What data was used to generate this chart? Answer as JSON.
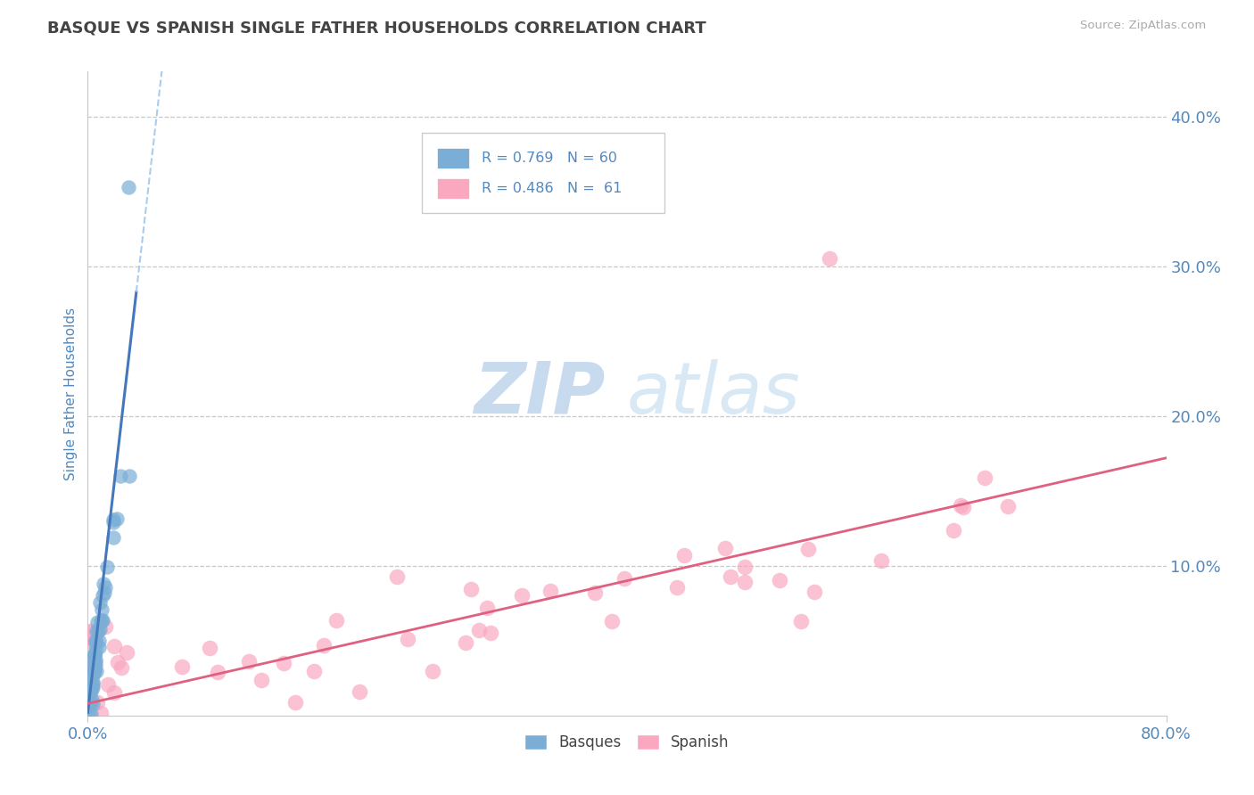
{
  "title": "BASQUE VS SPANISH SINGLE FATHER HOUSEHOLDS CORRELATION CHART",
  "source": "Source: ZipAtlas.com",
  "ylabel": "Single Father Households",
  "ytick_labels": [
    "40.0%",
    "30.0%",
    "20.0%",
    "10.0%"
  ],
  "ytick_values": [
    0.4,
    0.3,
    0.2,
    0.1
  ],
  "xlim": [
    0.0,
    0.8
  ],
  "ylim": [
    0.0,
    0.43
  ],
  "basque_R": 0.769,
  "basque_N": 60,
  "spanish_R": 0.486,
  "spanish_N": 61,
  "basque_color": "#7aaed6",
  "basque_line_color": "#4477bb",
  "basque_dash_color": "#aaccee",
  "spanish_color": "#f9a8c0",
  "spanish_line_color": "#e06080",
  "background_color": "#ffffff",
  "grid_color": "#c8c8c8",
  "title_color": "#444444",
  "axis_label_color": "#5588bb",
  "watermark_color_zip": "#c8daee",
  "watermark_color_atlas": "#d8e8f4",
  "legend_border_color": "#cccccc"
}
